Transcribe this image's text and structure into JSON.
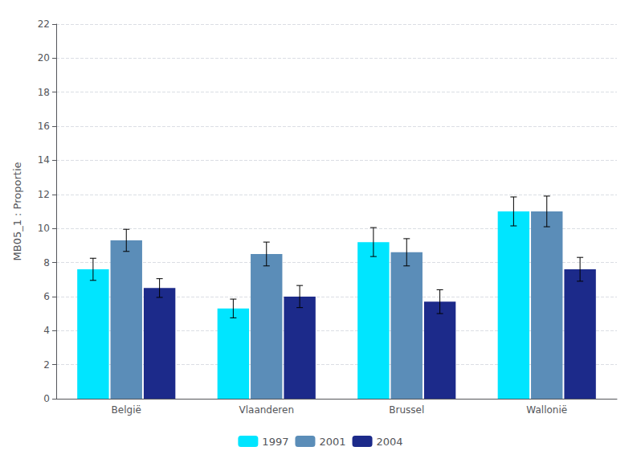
{
  "chart_data": {
    "type": "bar",
    "ylabel": "MB05_1 : Proportie",
    "categories": [
      "België",
      "Vlaanderen",
      "Brussel",
      "Wallonië"
    ],
    "series": [
      {
        "name": "1997",
        "color": "#00E5FF",
        "values": [
          7.6,
          5.3,
          9.2,
          11.0
        ],
        "errors": [
          0.65,
          0.55,
          0.85,
          0.85
        ]
      },
      {
        "name": "2001",
        "color": "#5B8DB8",
        "values": [
          9.3,
          8.5,
          8.6,
          11.0
        ],
        "errors": [
          0.65,
          0.7,
          0.8,
          0.9
        ]
      },
      {
        "name": "2004",
        "color": "#1C2A8A",
        "values": [
          6.5,
          6.0,
          5.7,
          7.6
        ],
        "errors": [
          0.55,
          0.65,
          0.7,
          0.7
        ]
      }
    ],
    "ylim": [
      0,
      22
    ],
    "yticks": [
      0,
      2,
      4,
      6,
      8,
      10,
      12,
      14,
      16,
      18,
      20,
      22
    ],
    "grid": true,
    "legend": "bottom"
  }
}
